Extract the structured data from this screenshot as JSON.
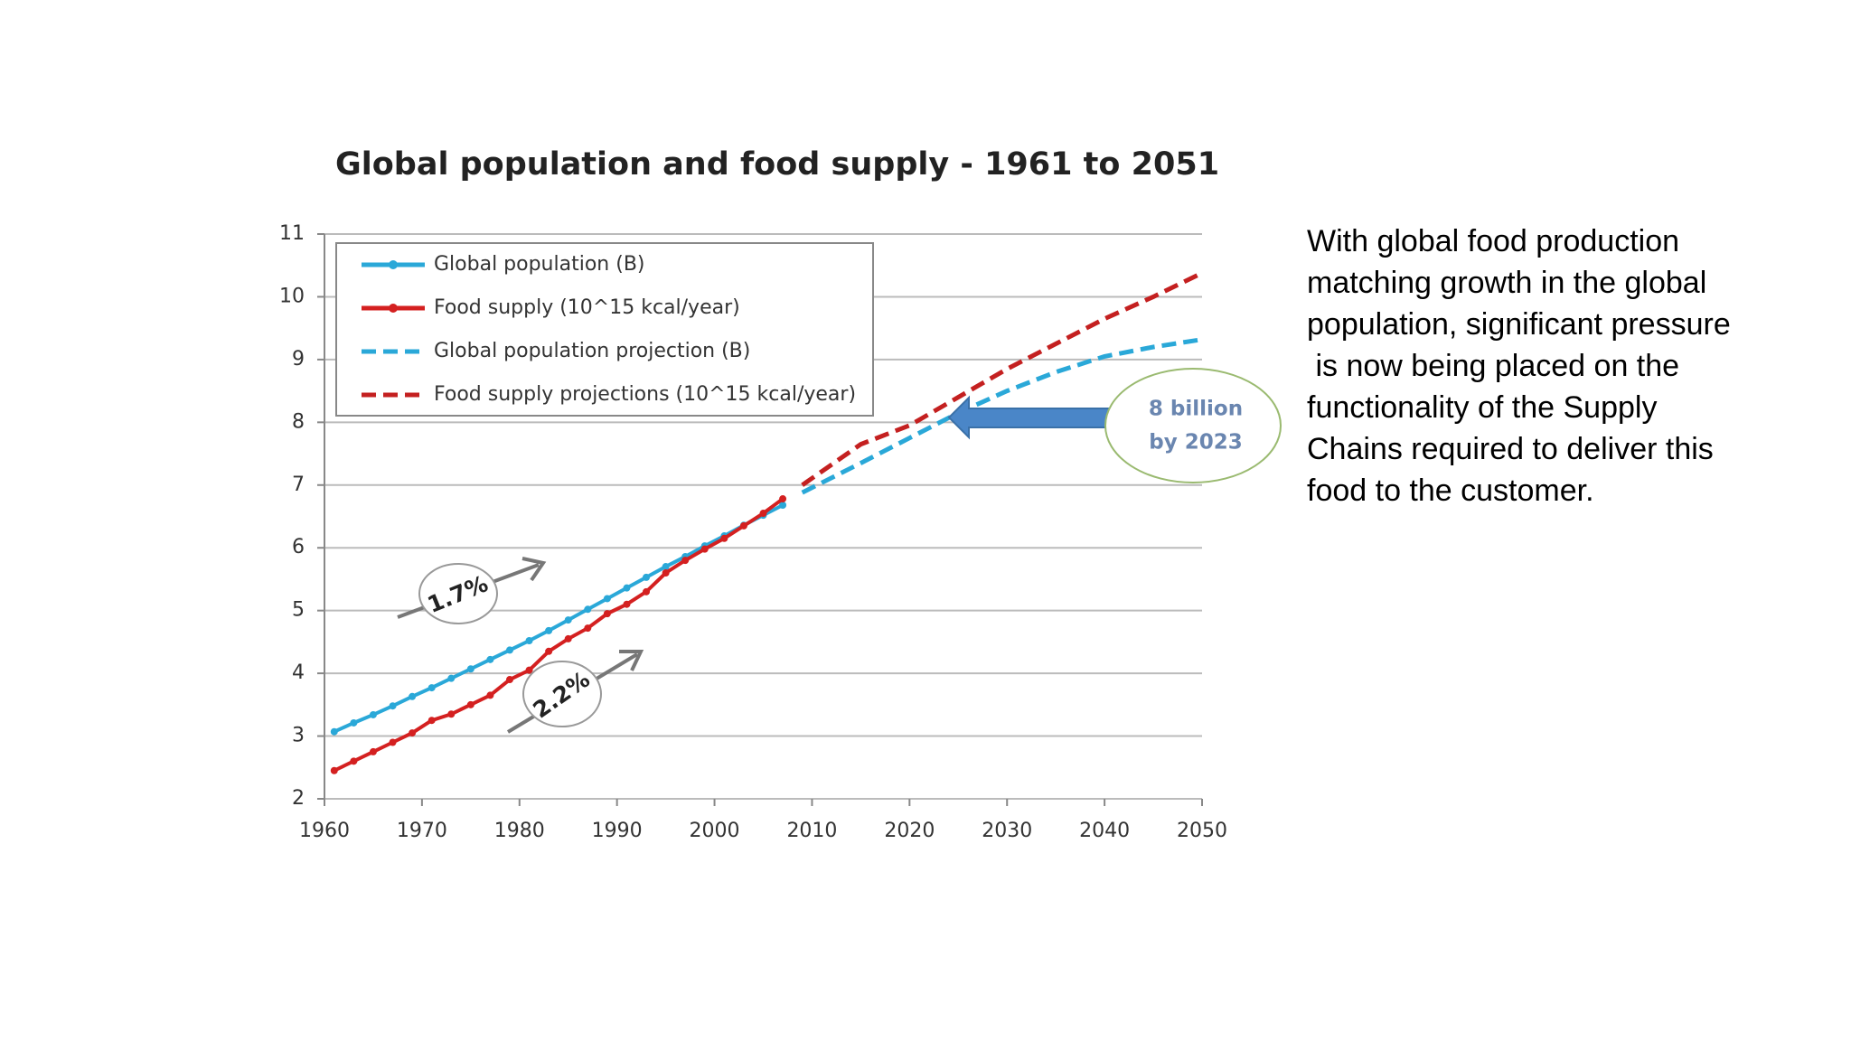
{
  "chart_data": {
    "type": "line",
    "title": "Global population  and food supply - 1961 to 2051",
    "x": [
      1961,
      1963,
      1965,
      1967,
      1969,
      1971,
      1973,
      1975,
      1977,
      1979,
      1981,
      1983,
      1985,
      1987,
      1989,
      1991,
      1993,
      1995,
      1997,
      1999,
      2001,
      2003,
      2005,
      2007,
      2009,
      2015,
      2020,
      2025,
      2030,
      2035,
      2040,
      2045,
      2050
    ],
    "series": [
      {
        "name": "Global population (B)",
        "color": "#2aa8d8",
        "dashed": false,
        "markers": true,
        "values": [
          3.07,
          3.21,
          3.34,
          3.48,
          3.63,
          3.77,
          3.92,
          4.07,
          4.22,
          4.37,
          4.52,
          4.68,
          4.85,
          5.02,
          5.19,
          5.36,
          5.53,
          5.7,
          5.86,
          6.03,
          6.19,
          6.36,
          6.52,
          6.68,
          null,
          null,
          null,
          null,
          null,
          null,
          null,
          null,
          null
        ]
      },
      {
        "name": "Food supply (10^15 kcal/year)",
        "color": "#d42020",
        "dashed": false,
        "markers": true,
        "values": [
          2.45,
          2.6,
          2.75,
          2.9,
          3.05,
          3.25,
          3.35,
          3.5,
          3.65,
          3.9,
          4.05,
          4.35,
          4.55,
          4.72,
          4.95,
          5.1,
          5.3,
          5.6,
          5.8,
          5.98,
          6.15,
          6.35,
          6.55,
          6.78,
          null,
          null,
          null,
          null,
          null,
          null,
          null,
          null,
          null
        ]
      },
      {
        "name": "Global population projection (B)",
        "color": "#2aa8d8",
        "dashed": true,
        "markers": false,
        "values": [
          null,
          null,
          null,
          null,
          null,
          null,
          null,
          null,
          null,
          null,
          null,
          null,
          null,
          null,
          null,
          null,
          null,
          null,
          null,
          null,
          null,
          null,
          null,
          null,
          6.88,
          7.35,
          7.75,
          8.15,
          8.5,
          8.8,
          9.05,
          9.2,
          9.32
        ]
      },
      {
        "name": "Food supply projections (10^15 kcal/year)",
        "color": "#c42020",
        "dashed": true,
        "markers": false,
        "values": [
          null,
          null,
          null,
          null,
          null,
          null,
          null,
          null,
          null,
          null,
          null,
          null,
          null,
          null,
          null,
          null,
          null,
          null,
          null,
          null,
          null,
          null,
          null,
          null,
          7.0,
          7.65,
          7.95,
          8.4,
          8.85,
          9.25,
          9.65,
          10.0,
          10.38
        ]
      }
    ],
    "xlim": [
      1960,
      2050
    ],
    "xticks": [
      1960,
      1970,
      1980,
      1990,
      2000,
      2010,
      2020,
      2030,
      2040,
      2050
    ],
    "ylim": [
      2,
      11
    ],
    "yticks": [
      2,
      3,
      4,
      5,
      6,
      7,
      8,
      9,
      10,
      11
    ],
    "grid": true,
    "legend": "upper left",
    "annotations": [
      "1.7%",
      "2.2%",
      "8 billion",
      "by 2023"
    ]
  },
  "body_text": [
    "With global food production",
    "matching growth in the global",
    "population, significant pressure",
    " is now being placed on the",
    "functionality of the Supply",
    "Chains required to deliver this",
    "food to the customer."
  ]
}
